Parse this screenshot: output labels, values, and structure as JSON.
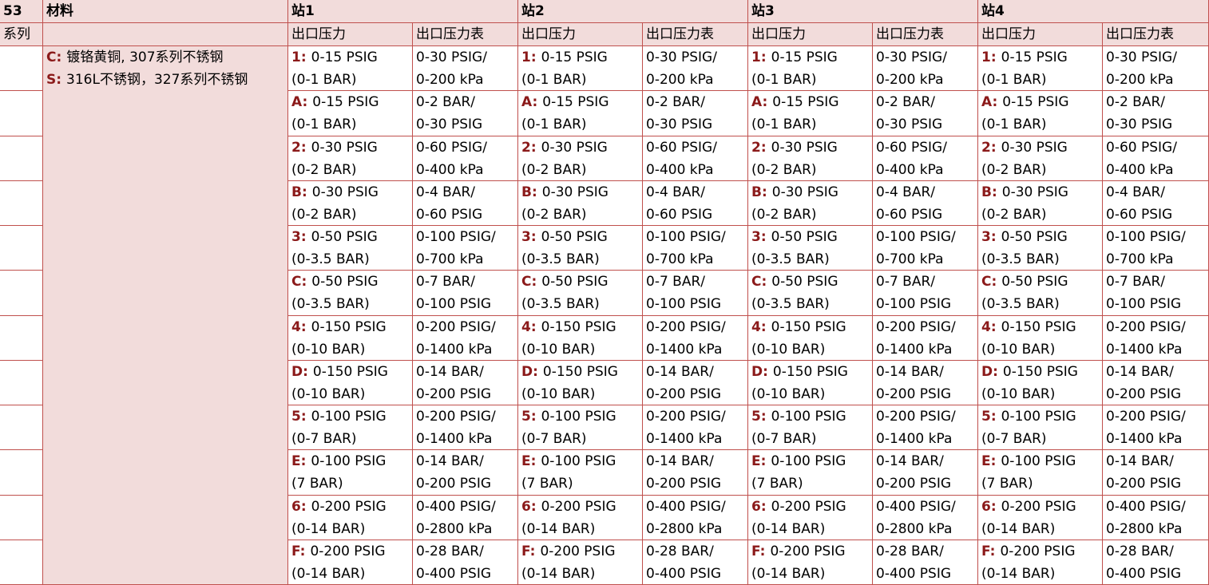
{
  "header": {
    "series_no": "53",
    "material_label": "材料",
    "series_label": "系列",
    "stations": [
      "站1",
      "站2",
      "站3",
      "站4"
    ],
    "sub_headers": [
      "出口压力",
      "出口压力表"
    ]
  },
  "materials": [
    {
      "code": "C:",
      "text": "镀铬黄铜, 307系列不锈钢"
    },
    {
      "code": "S:",
      "text": "316L不锈钢，327系列不锈钢"
    }
  ],
  "options": [
    {
      "code": "1:",
      "outlet": [
        "0-15 PSIG",
        "(0-1 BAR)"
      ],
      "gauge": [
        "0-30 PSIG/",
        "0-200 kPa"
      ]
    },
    {
      "code": "A:",
      "outlet": [
        "0-15 PSIG",
        "(0-1 BAR)"
      ],
      "gauge": [
        "0-2 BAR/",
        "0-30 PSIG"
      ]
    },
    {
      "code": "2:",
      "outlet": [
        "0-30 PSIG",
        "(0-2 BAR)"
      ],
      "gauge": [
        "0-60 PSIG/",
        "0-400 kPa"
      ]
    },
    {
      "code": "B:",
      "outlet": [
        "0-30 PSIG",
        "(0-2 BAR)"
      ],
      "gauge": [
        "0-4 BAR/",
        "0-60 PSIG"
      ]
    },
    {
      "code": "3:",
      "outlet": [
        "0-50 PSIG",
        "(0-3.5 BAR)"
      ],
      "gauge": [
        "0-100 PSIG/",
        "0-700 kPa"
      ]
    },
    {
      "code": "C:",
      "outlet": [
        "0-50 PSIG",
        "(0-3.5 BAR)"
      ],
      "gauge": [
        "0-7 BAR/",
        "0-100 PSIG"
      ]
    },
    {
      "code": "4:",
      "outlet": [
        "0-150 PSIG",
        "(0-10 BAR)"
      ],
      "gauge": [
        "0-200 PSIG/",
        "0-1400 kPa"
      ]
    },
    {
      "code": "D:",
      "outlet": [
        "0-150 PSIG",
        "(0-10 BAR)"
      ],
      "gauge": [
        "0-14 BAR/",
        "0-200 PSIG"
      ]
    },
    {
      "code": "5:",
      "outlet": [
        "0-100 PSIG",
        "(0-7 BAR)"
      ],
      "gauge": [
        "0-200 PSIG/",
        "0-1400 kPa"
      ]
    },
    {
      "code": "E:",
      "outlet": [
        "0-100 PSIG",
        "(7 BAR)"
      ],
      "gauge": [
        "0-14 BAR/",
        "0-200 PSIG"
      ]
    },
    {
      "code": "6:",
      "outlet": [
        "0-200 PSIG",
        "(0-14 BAR)"
      ],
      "gauge": [
        "0-400 PSIG/",
        "0-2800 kPa"
      ]
    },
    {
      "code": "F:",
      "outlet": [
        "0-200 PSIG",
        "(0-14 BAR)"
      ],
      "gauge": [
        "0-28 BAR/",
        "0-400 PSIG"
      ]
    }
  ]
}
